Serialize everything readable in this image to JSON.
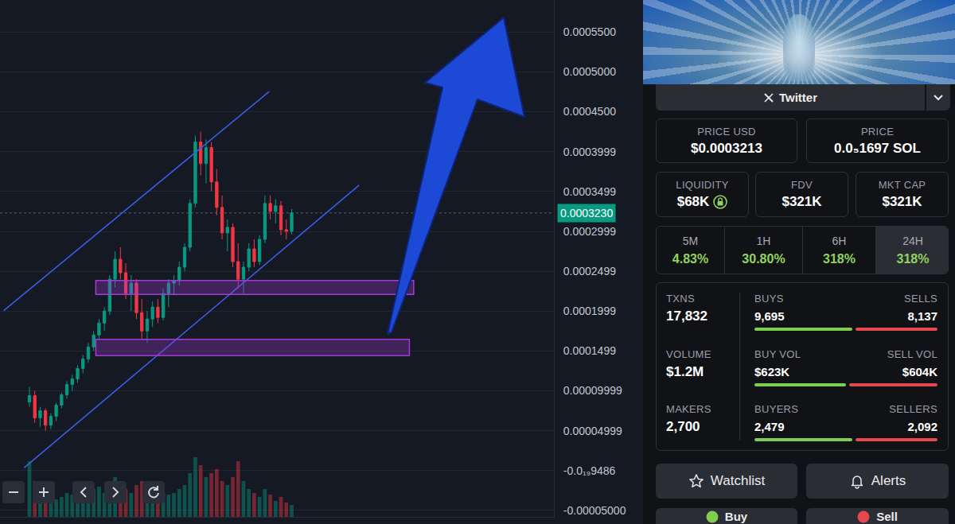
{
  "chart_data": {
    "type": "candlestick",
    "categories": [
      null,
      null,
      null,
      null,
      null,
      null,
      null,
      null,
      null,
      null,
      null,
      null,
      null,
      null,
      null,
      null,
      null,
      null,
      null,
      null,
      null,
      null,
      null,
      null,
      null,
      null,
      null,
      null,
      null,
      null,
      null,
      null,
      null,
      null,
      null,
      null,
      null,
      null,
      null,
      null,
      null,
      null,
      null,
      null,
      null,
      null,
      null,
      null,
      null,
      null
    ],
    "xlim": [
      -5.5,
      98
    ],
    "ylim": [
      -5.8e-05,
      0.00059
    ],
    "yticks": [
      {
        "value": 0.00055,
        "label": "0.0005500"
      },
      {
        "value": 0.0005,
        "label": "0.0005000"
      },
      {
        "value": 0.00045,
        "label": "0.0004500"
      },
      {
        "value": 0.0003999,
        "label": "0.0003999"
      },
      {
        "value": 0.0003499,
        "label": "0.0003499"
      },
      {
        "value": 0.0002999,
        "label": "0.0002999"
      },
      {
        "value": 0.0002499,
        "label": "0.0002499"
      },
      {
        "value": 0.0001999,
        "label": "0.0001999"
      },
      {
        "value": 0.0001499,
        "label": "0.0001499"
      },
      {
        "value": 9.999e-05,
        "label": "0.00009999"
      },
      {
        "value": 4.999e-05,
        "label": "0.00004999"
      },
      {
        "value": -9.486e-20,
        "label": "-0.0₁₉9486"
      },
      {
        "value": -5e-05,
        "label": "-0.00005000"
      }
    ],
    "grid": true,
    "tick_labels": "y",
    "y2lim": [
      0,
      650
    ],
    "series": [
      {
        "type": "bar",
        "axis": "y2",
        "values": [
          70,
          45,
          30,
          25,
          20,
          22,
          25,
          30,
          28,
          35,
          30,
          32,
          35,
          38,
          30,
          45,
          50,
          40,
          35,
          30,
          40,
          45,
          30,
          28,
          25,
          30,
          28,
          30,
          35,
          40,
          55,
          75,
          65,
          50,
          55,
          60,
          45,
          40,
          50,
          70,
          45,
          35,
          30,
          25,
          35,
          28,
          20,
          25,
          18,
          15
        ]
      },
      {
        "type": "candlestick",
        "colors": [
          "#089981",
          "#f23645"
        ],
        "open": [
          8.6e-05,
          9.4e-05,
          6.6e-05,
          7.5e-05,
          5.7e-05,
          6.8e-05,
          8.2e-05,
          9.5e-05,
          0.000108,
          0.000115,
          0.000128,
          0.00014,
          0.000155,
          0.00017,
          0.000185,
          0.0002,
          0.00024,
          0.000265,
          0.000248,
          0.000222,
          0.000235,
          0.000198,
          0.000175,
          0.00019,
          0.000205,
          0.000192,
          0.000222,
          0.000235,
          0.000238,
          0.000255,
          0.00028,
          0.000335,
          0.000412,
          0.000385,
          0.000405,
          0.000362,
          0.00033,
          0.000298,
          0.000305,
          0.000262,
          0.00024,
          0.000255,
          0.000278,
          0.000262,
          0.00029,
          0.000335,
          0.000325,
          0.000332,
          0.000302,
          0.0003
        ],
        "high": [
          0.000105,
          0.0001,
          8e-05,
          7.8e-05,
          7.2e-05,
          8.5e-05,
          9.8e-05,
          0.000112,
          0.00012,
          0.000132,
          0.000145,
          0.00016,
          0.000175,
          0.00019,
          0.000205,
          0.000245,
          0.000275,
          0.00028,
          0.00026,
          0.000245,
          0.00024,
          0.000215,
          0.0002,
          0.000212,
          0.000215,
          0.000228,
          0.00024,
          0.000245,
          0.000262,
          0.000285,
          0.00034,
          0.00042,
          0.000425,
          0.000415,
          0.000412,
          0.000378,
          0.000345,
          0.000315,
          0.00031,
          0.000285,
          0.000262,
          0.000285,
          0.00029,
          0.000295,
          0.000345,
          0.000345,
          0.00034,
          0.000338,
          0.000315,
          0.000328
        ],
        "low": [
          8e-05,
          6e-05,
          5.5e-05,
          5e-05,
          5.2e-05,
          6.2e-05,
          7.8e-05,
          9e-05,
          0.0001,
          0.00011,
          0.000122,
          0.000135,
          0.00015,
          0.000165,
          0.000175,
          0.000195,
          0.00023,
          0.00024,
          0.000215,
          0.0002,
          0.00019,
          0.000165,
          0.00016,
          0.00018,
          0.000185,
          0.000188,
          0.000205,
          0.00022,
          0.000232,
          0.00025,
          0.000275,
          0.00033,
          0.00037,
          0.00036,
          0.00035,
          0.00032,
          0.00029,
          0.000275,
          0.000255,
          0.000228,
          0.000222,
          0.00025,
          0.000255,
          0.000258,
          0.000285,
          0.000315,
          0.00031,
          0.000295,
          0.00029,
          0.000296
        ],
        "close": [
          9.4e-05,
          6.6e-05,
          7.5e-05,
          5.7e-05,
          6.8e-05,
          8.2e-05,
          9.5e-05,
          0.000108,
          0.000115,
          0.000128,
          0.00014,
          0.000155,
          0.00017,
          0.000185,
          0.0002,
          0.00024,
          0.000265,
          0.000248,
          0.000222,
          0.000235,
          0.000198,
          0.000175,
          0.00019,
          0.000205,
          0.000192,
          0.000222,
          0.000235,
          0.000238,
          0.000255,
          0.00028,
          0.000335,
          0.000412,
          0.000385,
          0.000405,
          0.000362,
          0.00033,
          0.000298,
          0.000305,
          0.000262,
          0.00024,
          0.000255,
          0.000278,
          0.000262,
          0.00029,
          0.000335,
          0.000325,
          0.000332,
          0.000302,
          0.0003,
          0.000323
        ]
      },
      {
        "type": "line",
        "color": "#3b5ce6",
        "x": [
          -4.8,
          44.8
        ],
        "values": [
          0.0002005,
          0.0004752
        ]
      },
      {
        "type": "line",
        "color": "#3b5ce6",
        "x": [
          -1.0,
          61.6
        ],
        "values": [
          3.4e-06,
          0.0003578
        ]
      }
    ],
    "zones": [
      {
        "color": "#a43ad6",
        "x": [
          12.4,
          71.8
        ],
        "values": [
          0.0002209,
          0.0002384
        ]
      },
      {
        "color": "#a43ad6",
        "x": [
          12.4,
          71.0
        ],
        "values": [
          0.0001442,
          0.0001646
        ]
      }
    ],
    "last_price": {
      "value": 0.000323,
      "label": "0.0003230",
      "color": "#089981"
    }
  },
  "panel": {
    "social": "Twitter",
    "prices": [
      {
        "label": "PRICE USD",
        "value": "$0.0003213"
      },
      {
        "label": "PRICE",
        "value": "0.0₅1697 SOL"
      }
    ],
    "stats": [
      {
        "label": "LIQUIDITY",
        "value": "$68K"
      },
      {
        "label": "FDV",
        "value": "$321K"
      },
      {
        "label": "MKT CAP",
        "value": "$321K"
      }
    ],
    "timeframes": [
      {
        "label": "5M",
        "change": "4.83%"
      },
      {
        "label": "1H",
        "change": "30.80%"
      },
      {
        "label": "6H",
        "change": "318%"
      },
      {
        "label": "24H",
        "change": "318%"
      }
    ],
    "selected_timeframe": "24H",
    "totals": [
      {
        "label": "TXNS",
        "value": "17,832"
      },
      {
        "label": "VOLUME",
        "value": "$1.2M"
      },
      {
        "label": "MAKERS",
        "value": "2,700"
      }
    ],
    "splits": [
      {
        "left": {
          "label": "BUYS",
          "value": 9695,
          "text": "9,695"
        },
        "right": {
          "label": "SELLS",
          "value": 8137,
          "text": "8,137"
        }
      },
      {
        "left": {
          "label": "BUY VOL",
          "value": 623000,
          "text": "$623K"
        },
        "right": {
          "label": "SELL VOL",
          "value": 604000,
          "text": "$604K"
        }
      },
      {
        "left": {
          "label": "BUYERS",
          "value": 2479,
          "text": "2,479"
        },
        "right": {
          "label": "SELLERS",
          "value": 2092,
          "text": "2,092"
        }
      }
    ],
    "buttons": [
      "Watchlist",
      "Alerts"
    ],
    "trade": [
      "Buy",
      "Sell"
    ]
  }
}
